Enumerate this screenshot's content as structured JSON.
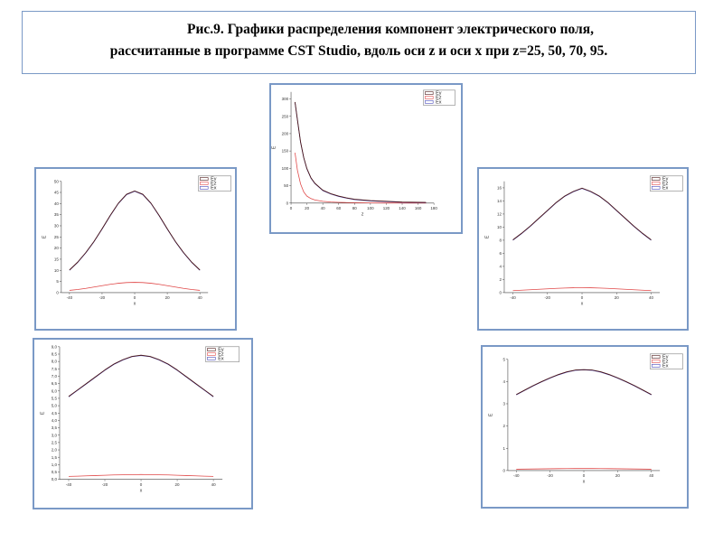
{
  "caption": {
    "line1": "Рис.9. Графики распределения компонент электрического поля,",
    "line2": "рассчитанные в программе CST Studio, вдоль оси z и оси x при z=25, 50, 70, 95."
  },
  "colors": {
    "Ey": "#4a1414",
    "Ez": "#e04848",
    "Ex": "#4848b8"
  },
  "chart_data": [
    {
      "id": "z-axis",
      "type": "line",
      "xlabel": "z",
      "ylabel": "E",
      "xlim": [
        0,
        180
      ],
      "ylim": [
        0,
        320
      ],
      "xticks": [
        "0",
        "20",
        "40",
        "60",
        "80",
        "100",
        "120",
        "140",
        "160",
        "180"
      ],
      "yticks": [
        "0",
        "50",
        "100",
        "150",
        "200",
        "250",
        "300"
      ],
      "legend": [
        "Ey",
        "Ez",
        "Ex"
      ],
      "x": [
        5,
        8,
        12,
        16,
        20,
        25,
        30,
        40,
        50,
        60,
        70,
        80,
        100,
        120,
        140,
        170
      ],
      "series": [
        {
          "name": "Ey",
          "values": [
            290,
            240,
            175,
            130,
            98,
            72,
            56,
            36,
            26,
            19,
            14,
            10,
            6,
            4,
            2,
            1
          ]
        },
        {
          "name": "Ez",
          "values": [
            145,
            95,
            55,
            32,
            20,
            13,
            9,
            5,
            3,
            2,
            1.5,
            1,
            0.5,
            0.3,
            0.2,
            0.1
          ]
        },
        {
          "name": "Ex",
          "values": [
            290,
            240,
            175,
            130,
            98,
            72,
            56,
            36,
            26,
            19,
            14,
            10,
            6,
            4,
            2,
            1
          ]
        }
      ]
    },
    {
      "id": "z25",
      "type": "line",
      "xlabel": "x",
      "ylabel": "E",
      "xlim": [
        -45,
        45
      ],
      "ylim": [
        0,
        50
      ],
      "xticks": [
        "-40",
        "-20",
        "0",
        "20",
        "40"
      ],
      "yticks": [
        "0",
        "5",
        "10",
        "15",
        "20",
        "25",
        "30",
        "35",
        "40",
        "45",
        "50"
      ],
      "legend": [
        "Ey",
        "Ez",
        "Ex"
      ],
      "x": [
        -40,
        -35,
        -30,
        -25,
        -20,
        -15,
        -10,
        -5,
        0,
        5,
        10,
        15,
        20,
        25,
        30,
        35,
        40
      ],
      "series": [
        {
          "name": "Ey",
          "values": [
            10,
            13.5,
            17.8,
            22.8,
            28.5,
            34.5,
            40.0,
            44.0,
            45.5,
            44.0,
            40.0,
            34.5,
            28.5,
            22.8,
            17.8,
            13.5,
            10
          ]
        },
        {
          "name": "Ez",
          "values": [
            1.0,
            1.4,
            1.9,
            2.5,
            3.1,
            3.7,
            4.2,
            4.5,
            4.6,
            4.5,
            4.2,
            3.7,
            3.1,
            2.5,
            1.9,
            1.4,
            1.0
          ]
        },
        {
          "name": "Ex",
          "values": [
            10,
            13.5,
            17.8,
            22.8,
            28.5,
            34.5,
            40.0,
            44.0,
            45.5,
            44.0,
            40.0,
            34.5,
            28.5,
            22.8,
            17.8,
            13.5,
            10
          ]
        }
      ]
    },
    {
      "id": "z50",
      "type": "line",
      "xlabel": "x",
      "ylabel": "E",
      "xlim": [
        -45,
        45
      ],
      "ylim": [
        0,
        17
      ],
      "xticks": [
        "-40",
        "-20",
        "0",
        "20",
        "40"
      ],
      "yticks": [
        "0",
        "2",
        "4",
        "6",
        "8",
        "10",
        "12",
        "14",
        "16"
      ],
      "legend": [
        "Ey",
        "Ez",
        "Ex"
      ],
      "x": [
        -40,
        -35,
        -30,
        -25,
        -20,
        -15,
        -10,
        -5,
        0,
        5,
        10,
        15,
        20,
        25,
        30,
        35,
        40
      ],
      "series": [
        {
          "name": "Ey",
          "values": [
            8.0,
            9.0,
            10.1,
            11.3,
            12.5,
            13.7,
            14.7,
            15.4,
            15.9,
            15.4,
            14.7,
            13.7,
            12.5,
            11.3,
            10.1,
            9.0,
            8.0
          ]
        },
        {
          "name": "Ez",
          "values": [
            0.3,
            0.36,
            0.43,
            0.5,
            0.57,
            0.64,
            0.7,
            0.74,
            0.75,
            0.74,
            0.7,
            0.64,
            0.57,
            0.5,
            0.43,
            0.36,
            0.3
          ]
        },
        {
          "name": "Ex",
          "values": [
            8.0,
            9.0,
            10.1,
            11.3,
            12.5,
            13.7,
            14.7,
            15.4,
            15.9,
            15.4,
            14.7,
            13.7,
            12.5,
            11.3,
            10.1,
            9.0,
            8.0
          ]
        }
      ]
    },
    {
      "id": "z70",
      "type": "line",
      "xlabel": "x",
      "ylabel": "E",
      "xlim": [
        -45,
        45
      ],
      "ylim": [
        0,
        9
      ],
      "xticks": [
        "-40",
        "-20",
        "0",
        "20",
        "40"
      ],
      "yticks": [
        "0,0",
        "0,5",
        "1,0",
        "1,5",
        "2,0",
        "2,5",
        "3,0",
        "3,5",
        "4,0",
        "4,5",
        "5,0",
        "5,5",
        "6,0",
        "6,5",
        "7,0",
        "7,5",
        "8,0",
        "8,5",
        "9,0"
      ],
      "legend": [
        "Ey",
        "Ez",
        "Ex"
      ],
      "x": [
        -40,
        -35,
        -30,
        -25,
        -20,
        -15,
        -10,
        -5,
        0,
        5,
        10,
        15,
        20,
        25,
        30,
        35,
        40
      ],
      "series": [
        {
          "name": "Ey",
          "values": [
            5.6,
            6.05,
            6.5,
            6.95,
            7.4,
            7.8,
            8.1,
            8.32,
            8.4,
            8.32,
            8.1,
            7.8,
            7.4,
            6.95,
            6.5,
            6.05,
            5.6
          ]
        },
        {
          "name": "Ez",
          "values": [
            0.2,
            0.22,
            0.24,
            0.26,
            0.28,
            0.3,
            0.31,
            0.32,
            0.33,
            0.32,
            0.31,
            0.3,
            0.28,
            0.26,
            0.24,
            0.22,
            0.2
          ]
        },
        {
          "name": "Ex",
          "values": [
            5.6,
            6.05,
            6.5,
            6.95,
            7.4,
            7.8,
            8.1,
            8.32,
            8.4,
            8.32,
            8.1,
            7.8,
            7.4,
            6.95,
            6.5,
            6.05,
            5.6
          ]
        }
      ]
    },
    {
      "id": "z95",
      "type": "line",
      "xlabel": "x",
      "ylabel": "E",
      "xlim": [
        -45,
        45
      ],
      "ylim": [
        0,
        5
      ],
      "xticks": [
        "-40",
        "-20",
        "0",
        "20",
        "40"
      ],
      "yticks": [
        "0",
        "1",
        "2",
        "3",
        "4",
        "5"
      ],
      "legend": [
        "Ey",
        "Ez",
        "Ex"
      ],
      "x": [
        -40,
        -35,
        -30,
        -25,
        -20,
        -15,
        -10,
        -5,
        0,
        5,
        10,
        15,
        20,
        25,
        30,
        35,
        40
      ],
      "series": [
        {
          "name": "Ey",
          "values": [
            3.4,
            3.6,
            3.8,
            3.98,
            4.15,
            4.3,
            4.42,
            4.5,
            4.52,
            4.5,
            4.42,
            4.3,
            4.15,
            3.98,
            3.8,
            3.6,
            3.4
          ]
        },
        {
          "name": "Ez",
          "values": [
            0.06,
            0.065,
            0.07,
            0.075,
            0.08,
            0.085,
            0.088,
            0.09,
            0.09,
            0.09,
            0.088,
            0.085,
            0.08,
            0.075,
            0.07,
            0.065,
            0.06
          ]
        },
        {
          "name": "Ex",
          "values": [
            3.4,
            3.6,
            3.8,
            3.98,
            4.15,
            4.3,
            4.42,
            4.5,
            4.52,
            4.5,
            4.42,
            4.3,
            4.15,
            3.98,
            3.8,
            3.6,
            3.4
          ]
        }
      ]
    }
  ]
}
